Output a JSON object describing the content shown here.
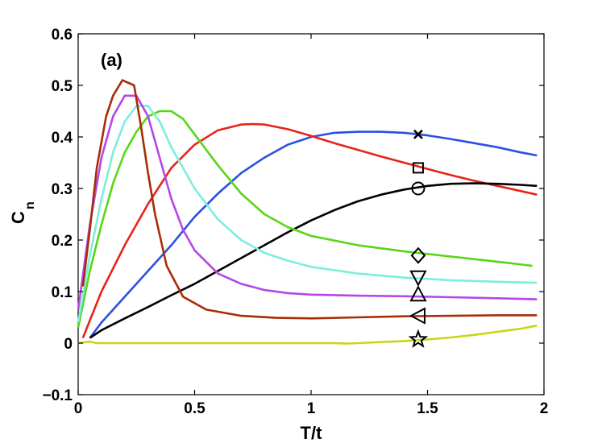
{
  "chart_data": {
    "type": "line",
    "title": "",
    "panel_label": "(a)",
    "xlabel": "T/t",
    "ylabel_main": "C",
    "ylabel_sub": "n",
    "xlim": [
      0,
      2
    ],
    "ylim": [
      -0.1,
      0.6
    ],
    "xticks": [
      0,
      0.5,
      1,
      1.5,
      2
    ],
    "xtick_labels": [
      "0",
      "0.5",
      "1",
      "1.5",
      "2"
    ],
    "yticks": [
      -0.1,
      0,
      0.1,
      0.2,
      0.3,
      0.4,
      0.5,
      0.6
    ],
    "ytick_labels": [
      "−0.1",
      "0",
      "0.1",
      "0.2",
      "0.3",
      "0.4",
      "0.5",
      "0.6"
    ],
    "grid": false,
    "series": [
      {
        "name": "x-marker curve",
        "color": "#2b50e0",
        "marker": "x",
        "x": [
          0.05,
          0.1,
          0.2,
          0.3,
          0.4,
          0.5,
          0.6,
          0.7,
          0.8,
          0.9,
          1.0,
          1.1,
          1.2,
          1.3,
          1.4,
          1.5,
          1.6,
          1.7,
          1.8,
          1.9,
          1.97
        ],
        "y": [
          0.01,
          0.04,
          0.09,
          0.14,
          0.19,
          0.245,
          0.29,
          0.33,
          0.36,
          0.385,
          0.4,
          0.408,
          0.41,
          0.41,
          0.408,
          0.403,
          0.396,
          0.388,
          0.38,
          0.37,
          0.364
        ]
      },
      {
        "name": "square-marker curve",
        "color": "#e8231a",
        "marker": "square",
        "x": [
          0.02,
          0.1,
          0.2,
          0.3,
          0.4,
          0.5,
          0.6,
          0.7,
          0.75,
          0.8,
          0.9,
          1.0,
          1.1,
          1.2,
          1.3,
          1.4,
          1.5,
          1.6,
          1.7,
          1.8,
          1.9,
          1.97
        ],
        "y": [
          0.01,
          0.1,
          0.19,
          0.27,
          0.34,
          0.385,
          0.413,
          0.424,
          0.425,
          0.424,
          0.415,
          0.402,
          0.388,
          0.375,
          0.362,
          0.35,
          0.338,
          0.326,
          0.315,
          0.305,
          0.295,
          0.288
        ]
      },
      {
        "name": "circle-marker curve",
        "color": "#000000",
        "marker": "circle",
        "x": [
          0.05,
          0.1,
          0.2,
          0.3,
          0.4,
          0.5,
          0.6,
          0.7,
          0.8,
          0.9,
          1.0,
          1.1,
          1.2,
          1.3,
          1.4,
          1.5,
          1.6,
          1.7,
          1.8,
          1.9,
          1.97
        ],
        "y": [
          0.01,
          0.025,
          0.048,
          0.07,
          0.093,
          0.115,
          0.14,
          0.165,
          0.19,
          0.215,
          0.238,
          0.258,
          0.275,
          0.288,
          0.298,
          0.305,
          0.309,
          0.31,
          0.309,
          0.307,
          0.305
        ]
      },
      {
        "name": "diamond-marker curve",
        "color": "#58d616",
        "marker": "diamond",
        "x": [
          0.0,
          0.05,
          0.1,
          0.15,
          0.2,
          0.25,
          0.3,
          0.35,
          0.4,
          0.45,
          0.5,
          0.6,
          0.7,
          0.8,
          0.9,
          1.0,
          1.2,
          1.4,
          1.6,
          1.8,
          1.95
        ],
        "y": [
          0.03,
          0.14,
          0.23,
          0.31,
          0.37,
          0.41,
          0.44,
          0.45,
          0.45,
          0.435,
          0.405,
          0.345,
          0.29,
          0.25,
          0.225,
          0.208,
          0.19,
          0.178,
          0.168,
          0.158,
          0.15
        ]
      },
      {
        "name": "down-triangle-marker curve",
        "color": "#7deedd",
        "marker": "triangle-down",
        "x": [
          0.0,
          0.05,
          0.1,
          0.15,
          0.2,
          0.25,
          0.3,
          0.35,
          0.4,
          0.5,
          0.6,
          0.7,
          0.8,
          0.9,
          1.0,
          1.2,
          1.4,
          1.6,
          1.8,
          1.97
        ],
        "y": [
          0.04,
          0.17,
          0.28,
          0.37,
          0.43,
          0.46,
          0.46,
          0.43,
          0.38,
          0.3,
          0.24,
          0.2,
          0.175,
          0.16,
          0.148,
          0.135,
          0.127,
          0.122,
          0.119,
          0.117
        ]
      },
      {
        "name": "up-triangle-marker curve",
        "color": "#b547e6",
        "marker": "triangle-up",
        "x": [
          0.0,
          0.05,
          0.1,
          0.15,
          0.2,
          0.25,
          0.3,
          0.35,
          0.4,
          0.45,
          0.5,
          0.6,
          0.7,
          0.8,
          0.9,
          1.0,
          1.2,
          1.4,
          1.6,
          1.8,
          1.97
        ],
        "y": [
          0.065,
          0.23,
          0.36,
          0.44,
          0.48,
          0.48,
          0.44,
          0.36,
          0.28,
          0.22,
          0.18,
          0.135,
          0.115,
          0.103,
          0.097,
          0.094,
          0.092,
          0.091,
          0.089,
          0.087,
          0.085
        ]
      },
      {
        "name": "left-triangle-marker curve",
        "color": "#a82c06",
        "marker": "triangle-left",
        "x": [
          0.02,
          0.05,
          0.08,
          0.12,
          0.15,
          0.19,
          0.24,
          0.27,
          0.3,
          0.33,
          0.38,
          0.45,
          0.55,
          0.7,
          0.85,
          1.0,
          1.2,
          1.4,
          1.6,
          1.8,
          1.97
        ],
        "y": [
          0.11,
          0.22,
          0.34,
          0.44,
          0.48,
          0.51,
          0.5,
          0.42,
          0.33,
          0.25,
          0.15,
          0.09,
          0.065,
          0.053,
          0.049,
          0.048,
          0.05,
          0.052,
          0.053,
          0.054,
          0.054
        ]
      },
      {
        "name": "star-marker curve",
        "color": "#c8d61a",
        "marker": "star",
        "x": [
          0.0,
          0.05,
          0.08,
          0.1,
          0.2,
          0.4,
          0.6,
          0.8,
          1.0,
          1.1,
          1.15,
          1.2,
          1.3,
          1.4,
          1.5,
          1.6,
          1.7,
          1.8,
          1.9,
          1.97
        ],
        "y": [
          0.0,
          0.003,
          0.0,
          0.0,
          0.0,
          0.0,
          0.0,
          0.0,
          0.0,
          0.0,
          -0.001,
          0.0,
          0.002,
          0.004,
          0.007,
          0.011,
          0.016,
          0.022,
          0.028,
          0.034
        ]
      }
    ],
    "markers": [
      {
        "symbol": "x",
        "x": 1.46,
        "y": 0.405
      },
      {
        "symbol": "square",
        "x": 1.46,
        "y": 0.34
      },
      {
        "symbol": "circle",
        "x": 1.46,
        "y": 0.3
      },
      {
        "symbol": "diamond",
        "x": 1.46,
        "y": 0.17
      },
      {
        "symbol": "triangle-down",
        "x": 1.46,
        "y": 0.127
      },
      {
        "symbol": "triangle-up",
        "x": 1.46,
        "y": 0.095
      },
      {
        "symbol": "triangle-left",
        "x": 1.46,
        "y": 0.053
      },
      {
        "symbol": "star",
        "x": 1.46,
        "y": 0.007
      }
    ]
  }
}
